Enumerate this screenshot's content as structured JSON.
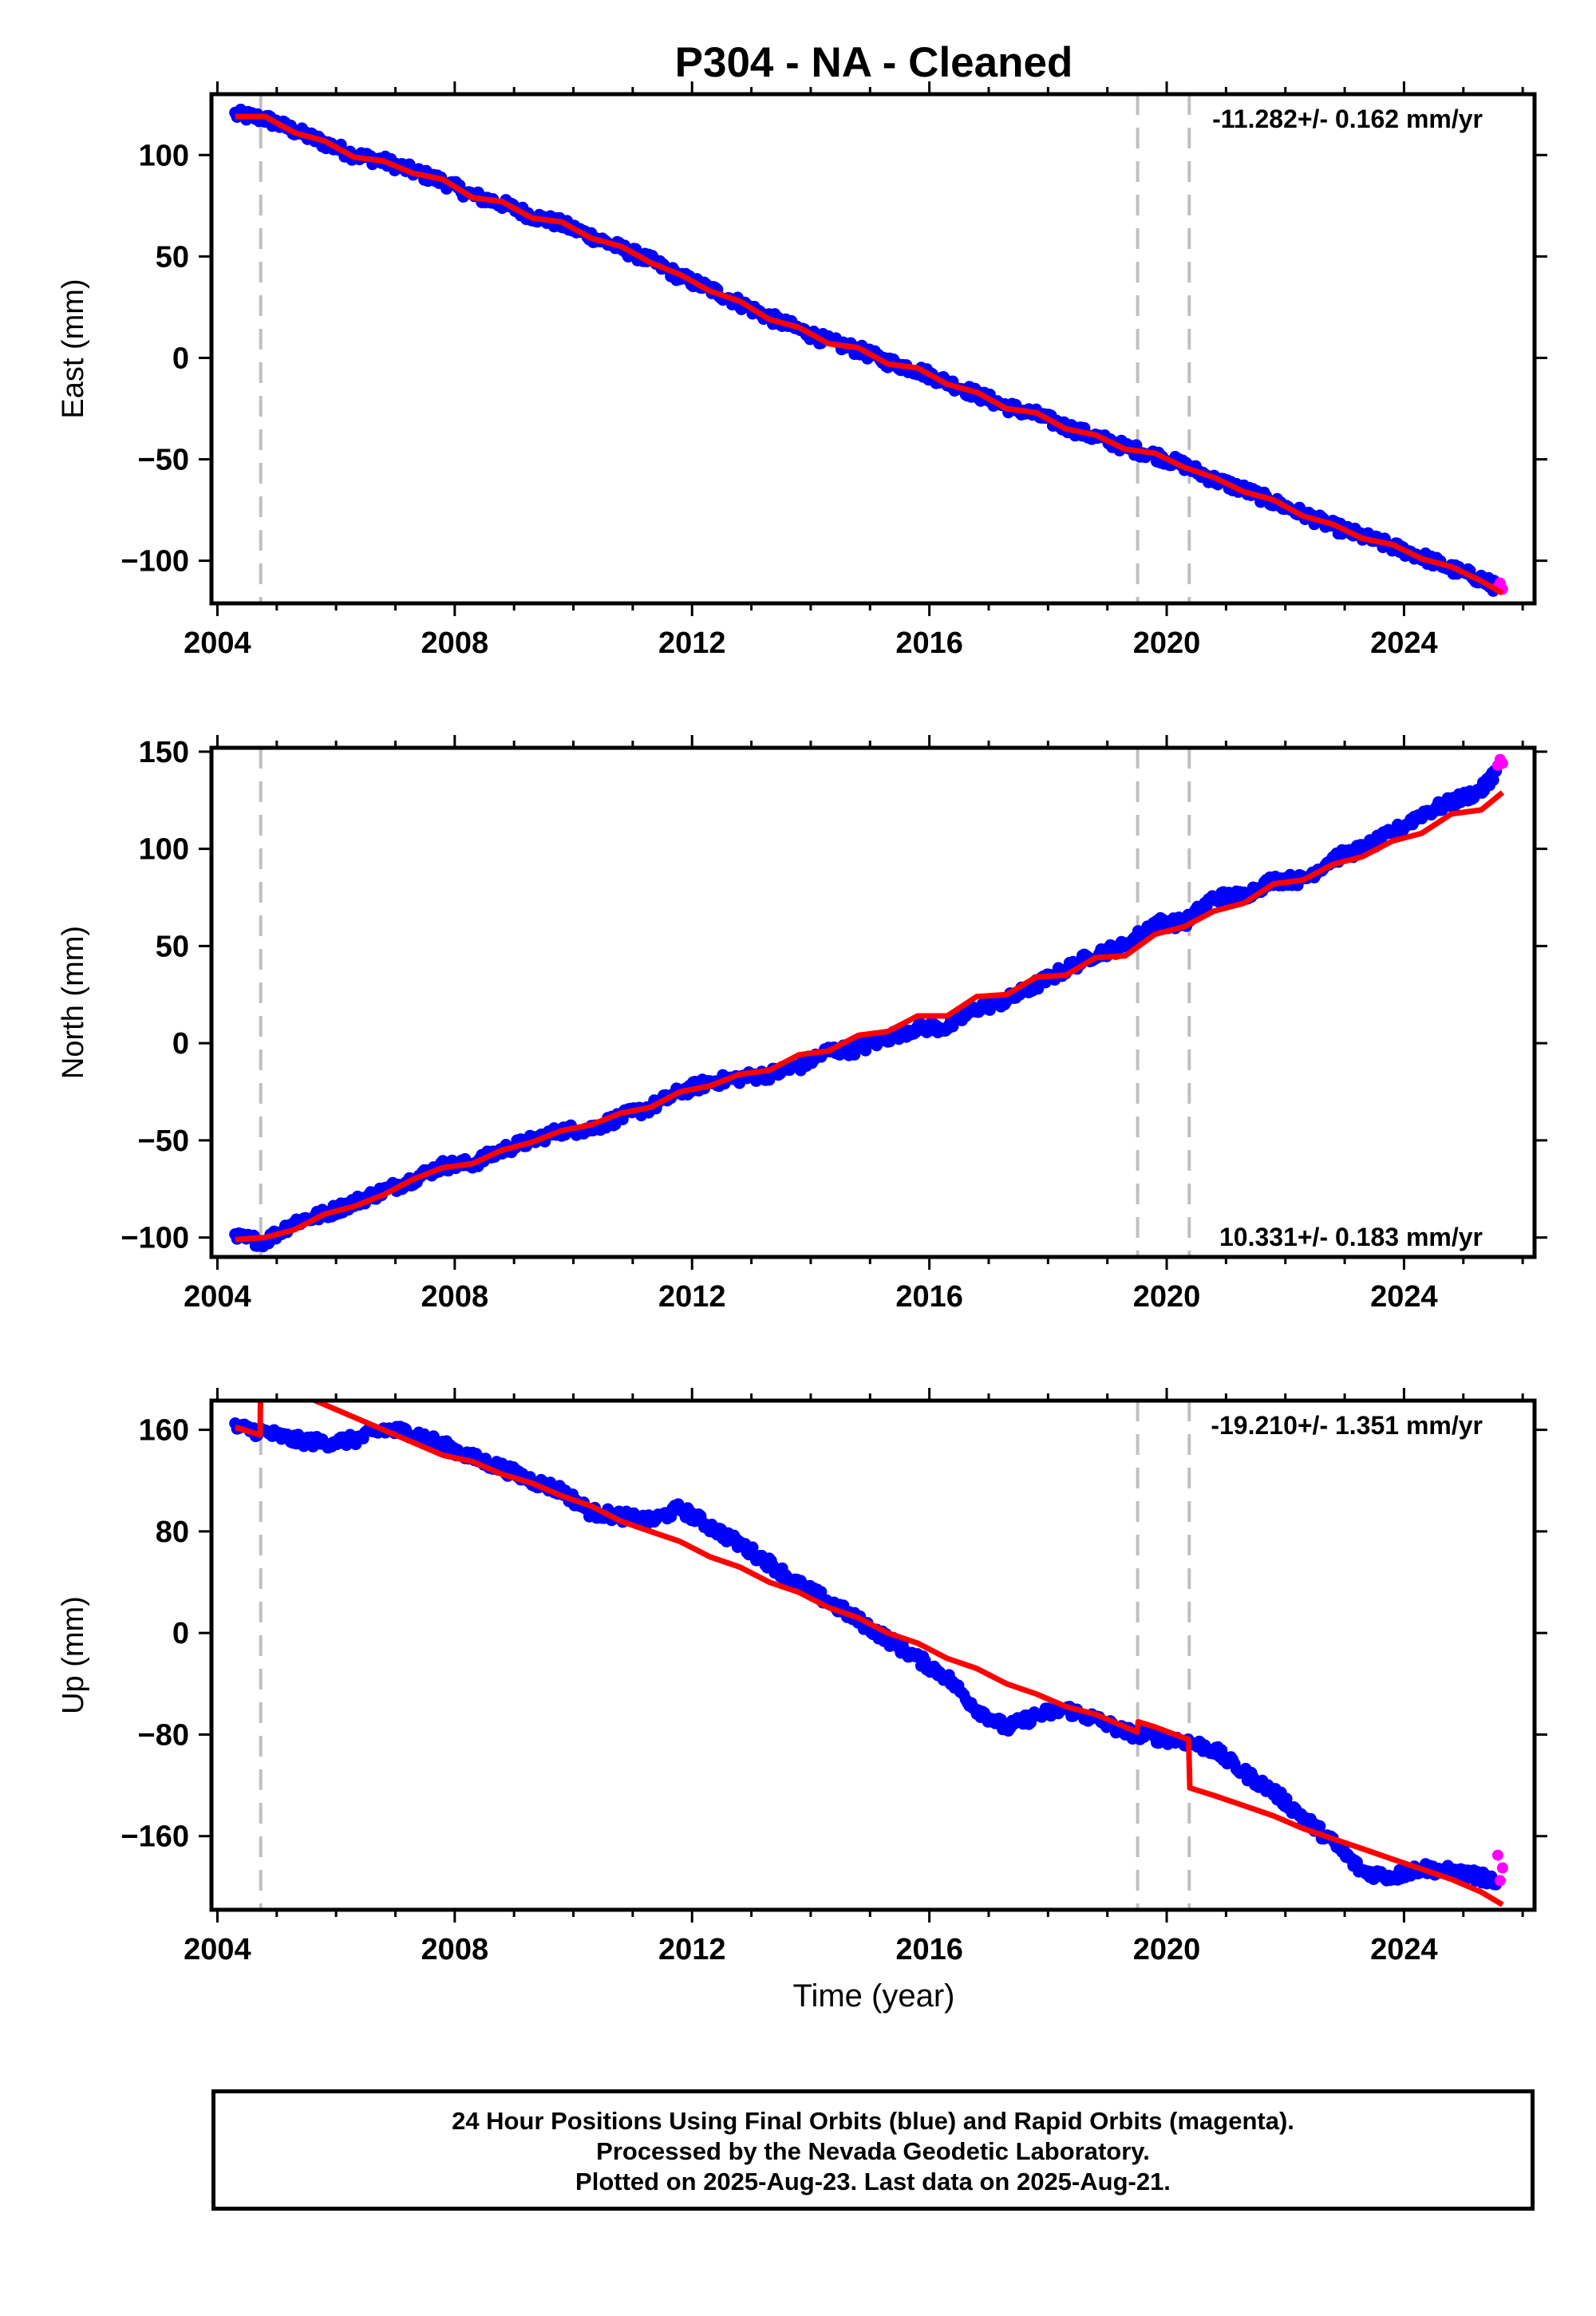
{
  "title": "P304  - NA - Cleaned",
  "xlabel": "Time (year)",
  "colors": {
    "final_orbits": "#0000ff",
    "rapid_orbits": "#ff00ff",
    "model": "#ff0000",
    "event_lines": "#c0c0c0"
  },
  "caption": {
    "line1": "24 Hour Positions Using Final Orbits (blue) and Rapid Orbits (magenta).",
    "line2": "Processed by the Nevada Geodetic Laboratory.",
    "line3": "Plotted on 2025-Aug-23. Last data on 2025-Aug-21."
  },
  "chart_data": [
    {
      "type": "scatter",
      "component": "east",
      "ylabel": "East (mm)",
      "rate_label": "-11.282+/- 0.162 mm/yr",
      "rate_position": "top-right",
      "xlim": [
        2003.9,
        2026.2
      ],
      "ylim": [
        -121,
        130
      ],
      "x_ticks": [
        2004,
        2008,
        2012,
        2016,
        2020,
        2024
      ],
      "y_ticks": [
        -100,
        -50,
        0,
        50,
        100
      ],
      "event_lines_x": [
        2004.73,
        2019.51,
        2020.38
      ],
      "series": [
        {
          "name": "Final Orbits",
          "color": "#0000ff",
          "x": [
            2004.3,
            2004.8,
            2005.3,
            2005.8,
            2006.3,
            2006.8,
            2007.3,
            2007.8,
            2008.3,
            2008.8,
            2009.3,
            2009.8,
            2010.3,
            2010.8,
            2011.3,
            2011.8,
            2012.3,
            2012.8,
            2013.3,
            2013.8,
            2014.3,
            2014.8,
            2015.3,
            2015.8,
            2016.3,
            2016.8,
            2017.3,
            2017.8,
            2018.3,
            2018.8,
            2019.3,
            2019.8,
            2020.3,
            2020.8,
            2021.3,
            2021.8,
            2022.3,
            2022.8,
            2023.3,
            2023.8,
            2024.3,
            2024.8,
            2025.3,
            2025.55
          ],
          "y": [
            120,
            118,
            112,
            106,
            100,
            97,
            92,
            87,
            80,
            76,
            70,
            66,
            60,
            54,
            48,
            40,
            34,
            27,
            20,
            14,
            8,
            4,
            -2,
            -6,
            -12,
            -18,
            -24,
            -28,
            -34,
            -39,
            -44,
            -48,
            -53,
            -60,
            -65,
            -71,
            -77,
            -83,
            -88,
            -93,
            -98,
            -104,
            -109,
            -113
          ]
        },
        {
          "name": "Rapid Orbits",
          "color": "#ff00ff",
          "x": [
            2025.58,
            2025.62,
            2025.66
          ],
          "y": [
            -113,
            -111,
            -114
          ]
        },
        {
          "name": "Model",
          "color": "#ff0000",
          "x": [
            2004.3,
            2004.8,
            2005.3,
            2005.8,
            2006.3,
            2006.8,
            2007.3,
            2007.8,
            2008.3,
            2008.8,
            2009.3,
            2009.8,
            2010.3,
            2010.8,
            2011.3,
            2011.8,
            2012.3,
            2012.8,
            2013.3,
            2013.8,
            2014.3,
            2014.8,
            2015.3,
            2015.8,
            2016.3,
            2016.8,
            2017.3,
            2017.8,
            2018.3,
            2018.8,
            2019.3,
            2019.8,
            2020.3,
            2020.8,
            2021.3,
            2021.8,
            2022.3,
            2022.8,
            2023.3,
            2023.8,
            2024.3,
            2024.8,
            2025.3,
            2025.66
          ],
          "y": [
            119,
            119,
            111,
            107,
            99,
            97,
            91,
            88,
            79,
            77,
            69,
            67,
            59,
            55,
            47,
            41,
            33,
            28,
            19,
            15,
            7,
            5,
            -3,
            -5,
            -13,
            -17,
            -25,
            -27,
            -35,
            -38,
            -45,
            -47,
            -54,
            -59,
            -66,
            -70,
            -78,
            -82,
            -89,
            -92,
            -99,
            -103,
            -110,
            -116
          ]
        }
      ]
    },
    {
      "type": "scatter",
      "component": "north",
      "ylabel": "North (mm)",
      "rate_label": "10.331+/- 0.183 mm/yr",
      "rate_position": "bottom-right",
      "xlim": [
        2003.9,
        2026.2
      ],
      "ylim": [
        -110,
        152
      ],
      "x_ticks": [
        2004,
        2008,
        2012,
        2016,
        2020,
        2024
      ],
      "y_ticks": [
        -100,
        -50,
        0,
        50,
        100,
        150
      ],
      "event_lines_x": [
        2004.73,
        2019.51,
        2020.38
      ],
      "series": [
        {
          "name": "Final Orbits",
          "color": "#0000ff",
          "x": [
            2004.3,
            2004.8,
            2005.3,
            2005.8,
            2006.3,
            2006.8,
            2007.3,
            2007.8,
            2008.3,
            2008.8,
            2009.3,
            2009.8,
            2010.3,
            2010.8,
            2011.3,
            2011.8,
            2012.3,
            2012.8,
            2013.3,
            2013.8,
            2014.3,
            2014.8,
            2015.3,
            2015.8,
            2016.3,
            2016.8,
            2017.3,
            2017.8,
            2018.3,
            2018.8,
            2019.3,
            2019.8,
            2020.3,
            2020.8,
            2021.3,
            2021.8,
            2022.3,
            2022.8,
            2023.3,
            2023.8,
            2024.3,
            2024.8,
            2025.3,
            2025.55
          ],
          "y": [
            -100,
            -102,
            -92,
            -88,
            -82,
            -76,
            -70,
            -63,
            -62,
            -55,
            -50,
            -45,
            -44,
            -38,
            -33,
            -25,
            -20,
            -18,
            -16,
            -12,
            -4,
            -3,
            3,
            8,
            8,
            18,
            22,
            30,
            38,
            46,
            50,
            62,
            62,
            75,
            76,
            84,
            84,
            95,
            100,
            108,
            118,
            124,
            130,
            140
          ]
        },
        {
          "name": "Rapid Orbits",
          "color": "#ff00ff",
          "x": [
            2025.58,
            2025.62,
            2025.66
          ],
          "y": [
            143,
            146,
            144
          ]
        },
        {
          "name": "Model",
          "color": "#ff0000",
          "x": [
            2004.3,
            2004.8,
            2005.3,
            2005.8,
            2006.3,
            2006.8,
            2007.3,
            2007.8,
            2008.3,
            2008.8,
            2009.3,
            2009.8,
            2010.3,
            2010.8,
            2011.3,
            2011.8,
            2012.3,
            2012.8,
            2013.3,
            2013.8,
            2014.3,
            2014.8,
            2015.3,
            2015.8,
            2016.3,
            2016.8,
            2017.3,
            2017.8,
            2018.3,
            2018.8,
            2019.3,
            2019.8,
            2020.3,
            2020.8,
            2021.3,
            2021.8,
            2022.3,
            2022.8,
            2023.3,
            2023.8,
            2024.3,
            2024.8,
            2025.3,
            2025.66
          ],
          "y": [
            -101,
            -100,
            -96,
            -88,
            -84,
            -78,
            -70,
            -64,
            -62,
            -55,
            -51,
            -45,
            -42,
            -36,
            -33,
            -25,
            -22,
            -16,
            -14,
            -6,
            -4,
            4,
            6,
            14,
            14,
            24,
            25,
            34,
            35,
            44,
            45,
            56,
            60,
            68,
            72,
            82,
            84,
            92,
            96,
            104,
            108,
            118,
            120,
            129
          ]
        }
      ]
    },
    {
      "type": "scatter",
      "component": "up",
      "ylabel": "Up (mm)",
      "rate_label": "-19.210+/- 1.351 mm/yr",
      "rate_position": "top-right",
      "xlim": [
        2003.9,
        2026.2
      ],
      "ylim": [
        -218,
        183
      ],
      "x_ticks": [
        2004,
        2008,
        2012,
        2016,
        2020,
        2024
      ],
      "y_ticks": [
        -160,
        -80,
        0,
        80,
        160
      ],
      "event_lines_x": [
        2004.73,
        2019.51,
        2020.38
      ],
      "series": [
        {
          "name": "Final Orbits",
          "color": "#0000ff",
          "x": [
            2004.3,
            2004.8,
            2005.3,
            2005.8,
            2006.3,
            2006.8,
            2007.3,
            2007.8,
            2008.3,
            2008.8,
            2009.3,
            2009.8,
            2010.3,
            2010.8,
            2011.3,
            2011.8,
            2012.3,
            2012.8,
            2013.3,
            2013.8,
            2014.3,
            2014.8,
            2015.3,
            2015.8,
            2016.3,
            2016.8,
            2017.3,
            2017.8,
            2018.3,
            2018.8,
            2019.3,
            2019.8,
            2020.3,
            2020.8,
            2021.3,
            2021.8,
            2022.3,
            2022.8,
            2023.3,
            2023.8,
            2024.3,
            2024.8,
            2025.3,
            2025.55
          ],
          "y": [
            162,
            158,
            152,
            150,
            152,
            160,
            158,
            148,
            138,
            130,
            120,
            112,
            95,
            92,
            88,
            98,
            84,
            70,
            55,
            38,
            25,
            10,
            -5,
            -20,
            -35,
            -60,
            -75,
            -65,
            -60,
            -68,
            -78,
            -82,
            -85,
            -92,
            -110,
            -125,
            -145,
            -165,
            -188,
            -192,
            -185,
            -188,
            -192,
            -198
          ]
        },
        {
          "name": "Rapid Orbits",
          "color": "#ff00ff",
          "x": [
            2025.58,
            2025.62,
            2025.66
          ],
          "y": [
            -175,
            -195,
            -185
          ]
        },
        {
          "name": "Model",
          "color": "#ff0000",
          "x": [
            2004.3,
            2004.72,
            2004.73,
            2005.3,
            2005.8,
            2006.3,
            2006.8,
            2007.3,
            2007.8,
            2008.3,
            2008.8,
            2009.3,
            2009.8,
            2010.3,
            2010.8,
            2011.3,
            2011.8,
            2012.3,
            2012.8,
            2013.3,
            2013.8,
            2014.3,
            2014.8,
            2015.3,
            2015.8,
            2016.3,
            2016.8,
            2017.3,
            2017.8,
            2018.3,
            2018.8,
            2019.3,
            2019.5,
            2019.52,
            2019.8,
            2020.37,
            2020.39,
            2020.8,
            2021.3,
            2021.8,
            2022.3,
            2022.8,
            2023.3,
            2023.8,
            2024.3,
            2024.8,
            2025.3,
            2025.66
          ],
          "y": [
            162,
            156,
            205,
            190,
            180,
            170,
            160,
            150,
            140,
            135,
            125,
            118,
            108,
            100,
            88,
            80,
            72,
            60,
            52,
            40,
            32,
            20,
            12,
            0,
            -8,
            -20,
            -28,
            -40,
            -48,
            -58,
            -64,
            -74,
            -78,
            -70,
            -74,
            -84,
            -122,
            -128,
            -136,
            -144,
            -154,
            -162,
            -170,
            -178,
            -186,
            -194,
            -204,
            -214
          ]
        }
      ]
    }
  ]
}
